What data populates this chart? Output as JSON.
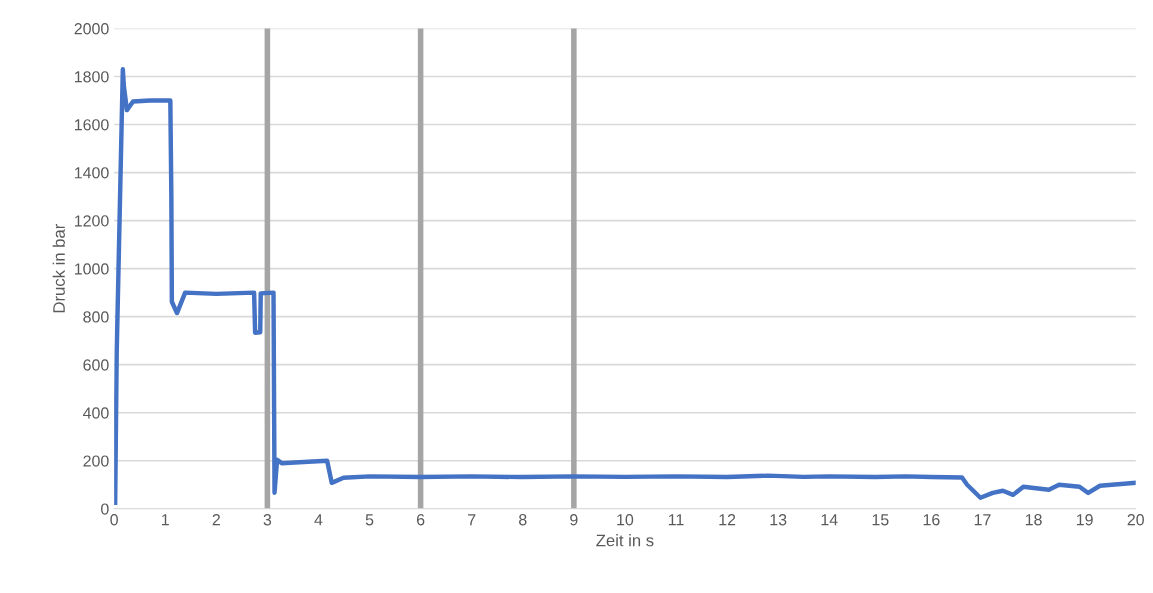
{
  "chart_data": {
    "type": "line",
    "xlabel": "Zeit in s",
    "ylabel": "Druck in bar",
    "xlim": [
      0,
      20
    ],
    "xticks": [
      0,
      1,
      2,
      3,
      4,
      5,
      6,
      7,
      8,
      9,
      10,
      11,
      12,
      13,
      14,
      15,
      16,
      17,
      18,
      19,
      20
    ],
    "ylim": [
      0,
      2000
    ],
    "yticks": [
      0,
      200,
      400,
      600,
      800,
      1000,
      1200,
      1400,
      1600,
      1800,
      2000
    ],
    "grid": "y",
    "marker": "none",
    "line_style": "solid",
    "ref_lines": [
      {
        "axis": "x",
        "value": 3,
        "color": "#a5a5a5"
      },
      {
        "axis": "x",
        "value": 6,
        "color": "#a5a5a5"
      },
      {
        "axis": "x",
        "value": 9,
        "color": "#a5a5a5"
      }
    ],
    "series": [
      {
        "color": "#4472c4",
        "x": [
          0.02,
          0.05,
          0.12,
          0.17,
          0.19,
          0.25,
          0.37,
          0.7,
          1.0,
          1.1,
          1.12,
          1.13,
          1.23,
          1.39,
          2.0,
          2.74,
          2.76,
          2.86,
          2.87,
          3.12,
          3.14,
          3.19,
          3.28,
          3.8,
          4.17,
          4.26,
          4.49,
          5.0,
          6.0,
          7.0,
          8.0,
          9.0,
          10.0,
          11.0,
          12.0,
          12.8,
          13.5,
          14.0,
          14.9,
          15.5,
          16.0,
          16.6,
          16.7,
          16.96,
          17.2,
          17.4,
          17.6,
          17.8,
          18.3,
          18.5,
          18.9,
          19.07,
          19.3,
          20.0
        ],
        "values": [
          25,
          650,
          1340,
          1830,
          1760,
          1660,
          1696,
          1700,
          1700,
          1700,
          1300,
          862,
          815,
          900,
          895,
          900,
          733,
          735,
          897,
          900,
          67,
          204,
          190,
          196,
          200,
          108,
          129,
          135,
          132,
          135,
          132,
          135,
          133,
          135,
          132,
          138,
          133,
          135,
          132,
          135,
          132,
          130,
          100,
          46,
          66,
          75,
          58,
          92,
          79,
          100,
          92,
          66,
          96,
          108
        ]
      }
    ]
  }
}
